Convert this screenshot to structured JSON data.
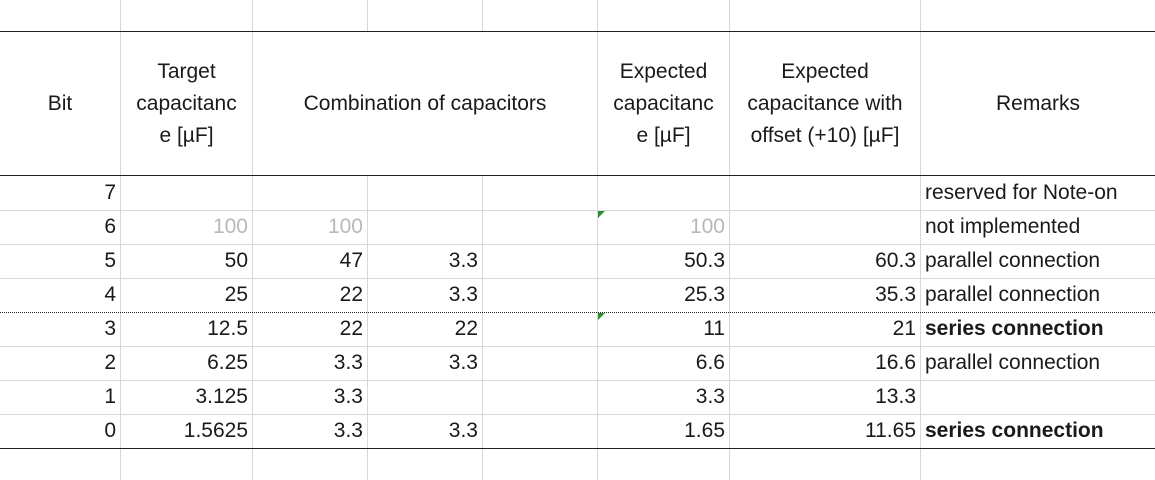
{
  "header": {
    "bit": "Bit",
    "target": "Target capacitanc e [µF]",
    "combination": "Combination of capacitors",
    "expected": "Expected capacitanc e [µF]",
    "expected_offset": "Expected capacitance with offset (+10) [µF]",
    "remarks": "Remarks"
  },
  "rows": [
    {
      "bit": "7",
      "target": "",
      "c1": "",
      "c2": "",
      "expected": "",
      "offset": "",
      "remarks": "reserved for Note-on",
      "muted": false,
      "bold": false
    },
    {
      "bit": "6",
      "target": "100",
      "c1": "100",
      "c2": "",
      "expected": "100",
      "offset": "",
      "remarks": "not implemented",
      "muted": true,
      "bold": false
    },
    {
      "bit": "5",
      "target": "50",
      "c1": "47",
      "c2": "3.3",
      "expected": "50.3",
      "offset": "60.3",
      "remarks": "parallel connection",
      "muted": false,
      "bold": false
    },
    {
      "bit": "4",
      "target": "25",
      "c1": "22",
      "c2": "3.3",
      "expected": "25.3",
      "offset": "35.3",
      "remarks": "parallel connection",
      "muted": false,
      "bold": false
    },
    {
      "bit": "3",
      "target": "12.5",
      "c1": "22",
      "c2": "22",
      "expected": "11",
      "offset": "21",
      "remarks": "series connection",
      "muted": false,
      "bold": true
    },
    {
      "bit": "2",
      "target": "6.25",
      "c1": "3.3",
      "c2": "3.3",
      "expected": "6.6",
      "offset": "16.6",
      "remarks": "parallel connection",
      "muted": false,
      "bold": false
    },
    {
      "bit": "1",
      "target": "3.125",
      "c1": "3.3",
      "c2": "",
      "expected": "3.3",
      "offset": "13.3",
      "remarks": "",
      "muted": false,
      "bold": false
    },
    {
      "bit": "0",
      "target": "1.5625",
      "c1": "3.3",
      "c2": "3.3",
      "expected": "1.65",
      "offset": "11.65",
      "remarks": "series connection",
      "muted": false,
      "bold": true
    }
  ],
  "colors": {
    "gridline": "#d8d8d8",
    "border": "#202020",
    "muted_text": "#b8b8b8",
    "comment_marker": "#2e8b2e"
  }
}
